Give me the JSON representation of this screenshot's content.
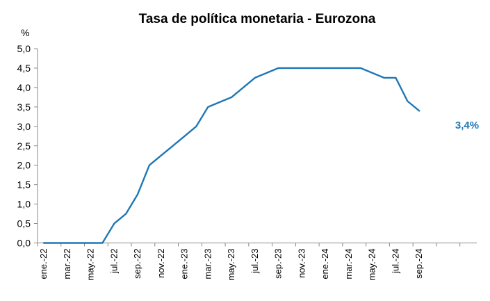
{
  "chart_data": {
    "type": "line",
    "title": "Tasa de política monetaria - Eurozona",
    "ylabel": "%",
    "xlabel": "",
    "ylim": [
      0,
      5
    ],
    "yticks": [
      "0,0",
      "0,5",
      "1,0",
      "1,5",
      "2,0",
      "2,5",
      "3,0",
      "3,5",
      "4,0",
      "4,5",
      "5,0"
    ],
    "xtick_labels": [
      "ene.-22",
      "mar.-22",
      "may.-22",
      "jul.-22",
      "sep.-22",
      "nov.-22",
      "ene.-23",
      "mar.-23",
      "may.-23",
      "jul.-23",
      "sep.-23",
      "nov.-23",
      "ene.-24",
      "mar.-24",
      "may.-24",
      "jul.-24",
      "sep.-24"
    ],
    "grid": false,
    "color": "#1f77b4",
    "end_label": "3,4%",
    "series": [
      {
        "x": [
          "ene.-22",
          "feb.-22",
          "mar.-22",
          "abr.-22",
          "may.-22",
          "jun.-22",
          "jul.-22",
          "ago.-22",
          "sep.-22",
          "oct.-22",
          "nov.-22",
          "dic.-22",
          "ene.-23",
          "feb.-23",
          "mar.-23",
          "abr.-23",
          "may.-23",
          "jun.-23",
          "jul.-23",
          "ago.-23",
          "sep.-23",
          "oct.-23",
          "nov.-23",
          "dic.-23",
          "ene.-24",
          "feb.-24",
          "mar.-24",
          "abr.-24",
          "may.-24",
          "jun.-24",
          "jul.-24",
          "ago.-24",
          "sep.-24"
        ],
        "values": [
          0,
          0,
          0,
          0,
          0,
          0,
          0.5,
          0.75,
          1.25,
          2.0,
          2.25,
          2.5,
          2.75,
          3.0,
          3.5,
          3.625,
          3.75,
          4.0,
          4.25,
          4.375,
          4.5,
          4.5,
          4.5,
          4.5,
          4.5,
          4.5,
          4.5,
          4.5,
          4.375,
          4.25,
          4.25,
          3.65,
          3.4
        ]
      }
    ]
  }
}
